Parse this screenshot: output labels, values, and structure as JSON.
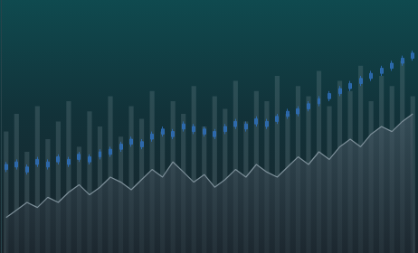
{
  "chart_data": {
    "type": "mixed",
    "categories": [
      null,
      null,
      null,
      null,
      null,
      null,
      null,
      null,
      null,
      null,
      null,
      null,
      null,
      null,
      null,
      null,
      null,
      null,
      null,
      null,
      null,
      null,
      null,
      null,
      null,
      null,
      null,
      null,
      null,
      null,
      null,
      null,
      null,
      null,
      null,
      null,
      null,
      null,
      null,
      null
    ],
    "ylim": [
      0,
      100
    ],
    "grid": false,
    "tick_labels": false,
    "series": [
      {
        "type": "bar",
        "color": "#6f8791",
        "values": [
          48,
          55,
          40,
          58,
          45,
          52,
          60,
          42,
          56,
          50,
          62,
          46,
          58,
          53,
          64,
          48,
          60,
          55,
          66,
          50,
          62,
          57,
          68,
          52,
          64,
          60,
          70,
          55,
          66,
          62,
          72,
          58,
          68,
          64,
          74,
          60,
          70,
          66,
          76,
          62
        ]
      },
      {
        "type": "candlestick",
        "color": "#2f6fb8",
        "values": [
          [
            33,
            35,
            32,
            36
          ],
          [
            36,
            34,
            33,
            37
          ],
          [
            32,
            34,
            31,
            35
          ],
          [
            35,
            37,
            34,
            38
          ],
          [
            36,
            34,
            33,
            37
          ],
          [
            36,
            38,
            35,
            39
          ],
          [
            37,
            35,
            34,
            38
          ],
          [
            37,
            39,
            36,
            40
          ],
          [
            38,
            36,
            35,
            39
          ],
          [
            38,
            40,
            37,
            41
          ],
          [
            39,
            41,
            38,
            42
          ],
          [
            41,
            43,
            40,
            44
          ],
          [
            43,
            45,
            42,
            46
          ],
          [
            44,
            42,
            41,
            45
          ],
          [
            45,
            47,
            44,
            48
          ],
          [
            47,
            49,
            46,
            50
          ],
          [
            48,
            46,
            45,
            49
          ],
          [
            49,
            51,
            48,
            52
          ],
          [
            50,
            48,
            47,
            51
          ],
          [
            49,
            47,
            46,
            50
          ],
          [
            48,
            46,
            45,
            49
          ],
          [
            48,
            50,
            47,
            51
          ],
          [
            50,
            52,
            49,
            53
          ],
          [
            51,
            49,
            48,
            52
          ],
          [
            51,
            53,
            50,
            54
          ],
          [
            52,
            50,
            49,
            53
          ],
          [
            52,
            54,
            51,
            55
          ],
          [
            54,
            56,
            53,
            57
          ],
          [
            55,
            57,
            54,
            58
          ],
          [
            57,
            59,
            56,
            60
          ],
          [
            59,
            61,
            58,
            62
          ],
          [
            61,
            63,
            60,
            64
          ],
          [
            63,
            65,
            62,
            66
          ],
          [
            65,
            67,
            64,
            68
          ],
          [
            67,
            69,
            66,
            70
          ],
          [
            69,
            71,
            68,
            72
          ],
          [
            71,
            73,
            70,
            74
          ],
          [
            73,
            75,
            72,
            76
          ],
          [
            75,
            77,
            74,
            78
          ],
          [
            77,
            79,
            76,
            80
          ]
        ]
      },
      {
        "type": "area",
        "color": "#7d8f99",
        "values": [
          14,
          17,
          20,
          18,
          22,
          20,
          24,
          27,
          23,
          26,
          30,
          28,
          25,
          29,
          33,
          30,
          36,
          32,
          28,
          31,
          26,
          29,
          33,
          30,
          35,
          32,
          30,
          34,
          38,
          35,
          40,
          37,
          42,
          45,
          42,
          47,
          50,
          48,
          52,
          55
        ]
      }
    ]
  }
}
